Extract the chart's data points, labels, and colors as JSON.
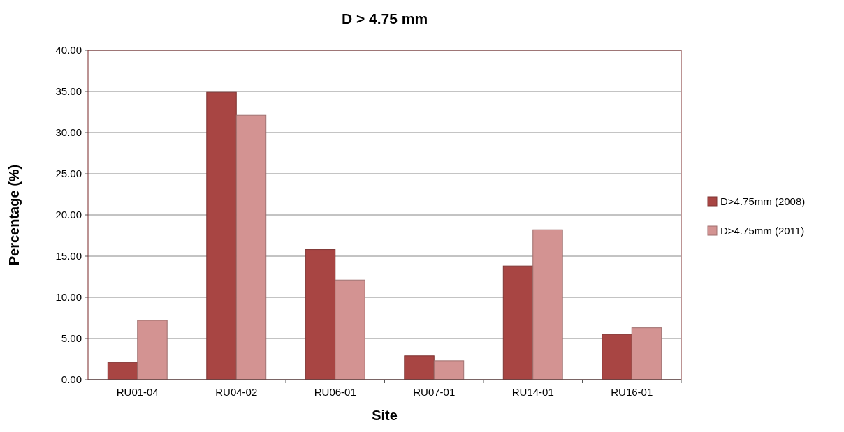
{
  "chart_data": {
    "type": "bar",
    "title": "D > 4.75 mm",
    "xlabel": "Site",
    "ylabel": "Percentage (%)",
    "categories": [
      "RU01-04",
      "RU04-02",
      "RU06-01",
      "RU07-01",
      "RU14-01",
      "RU16-01"
    ],
    "series": [
      {
        "name": "D>4.75mm (2008)",
        "color": "#a84543",
        "values": [
          2.1,
          34.9,
          15.8,
          2.9,
          13.8,
          5.5
        ]
      },
      {
        "name": "D>4.75mm (2011)",
        "color": "#d39392",
        "values": [
          7.2,
          32.1,
          12.1,
          2.3,
          18.2,
          6.3
        ]
      }
    ],
    "ylim": [
      0,
      40
    ],
    "yticks": [
      {
        "value": 0,
        "label": "0.00"
      },
      {
        "value": 5,
        "label": "5.00"
      },
      {
        "value": 10,
        "label": "10.00"
      },
      {
        "value": 15,
        "label": "15.00"
      },
      {
        "value": 20,
        "label": "20.00"
      },
      {
        "value": 25,
        "label": "25.00"
      },
      {
        "value": 30,
        "label": "30.00"
      },
      {
        "value": 35,
        "label": "35.00"
      },
      {
        "value": 40,
        "label": "40.00"
      }
    ],
    "grid": "y",
    "legend": "right"
  }
}
